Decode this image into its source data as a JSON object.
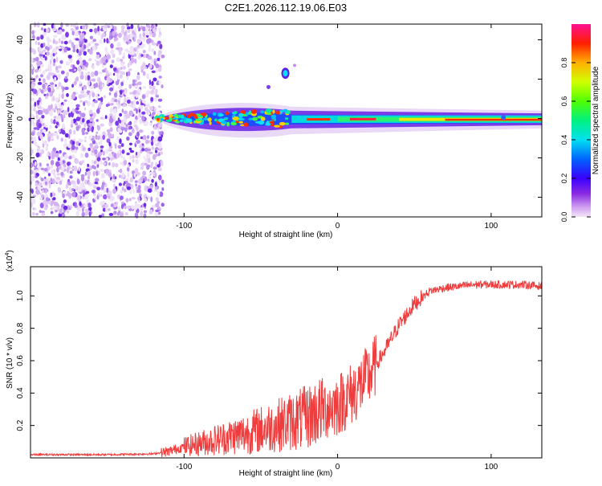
{
  "title": "C2E1.2026.112.19.06.E03",
  "chart_data": [
    {
      "type": "heatmap",
      "name": "spectrogram",
      "xlabel": "Height of straight line (km)",
      "ylabel": "Frequency (Hz)",
      "xlim": [
        -200,
        133
      ],
      "ylim": [
        -50,
        48
      ],
      "x_ticks": [
        -100,
        0,
        100
      ],
      "y_ticks": [
        -40,
        -20,
        0,
        20,
        40
      ],
      "colorbar": {
        "label": "Normalized spectral amplitude",
        "range": [
          0,
          1
        ],
        "ticks": [
          0.0,
          0.2,
          0.4,
          0.6,
          0.8
        ]
      },
      "features": {
        "noise_region_x": [
          -200,
          -118
        ],
        "signal_start_x": -120,
        "signal_band_hz": [
          -3,
          3
        ],
        "blob_x": -34,
        "blob_hz": 23
      }
    },
    {
      "type": "line",
      "name": "snr",
      "xlabel": "Height of straight line (km)",
      "ylabel": "SNR (10 * v/v)",
      "y_multiplier": "(x10",
      "y_exponent": "4",
      "xlim": [
        -200,
        133
      ],
      "ylim": [
        0,
        1.18
      ],
      "x_ticks": [
        -100,
        0,
        100
      ],
      "y_ticks": [
        0.2,
        0.4,
        0.6,
        0.8,
        1.0
      ],
      "color": "#f03c3c",
      "trend": {
        "x": [
          -200,
          -150,
          -120,
          -110,
          -100,
          -80,
          -60,
          -40,
          -20,
          -10,
          0,
          10,
          20,
          30,
          40,
          50,
          60,
          70,
          80,
          90,
          100,
          110,
          120,
          133
        ],
        "y": [
          0.02,
          0.02,
          0.025,
          0.04,
          0.07,
          0.11,
          0.15,
          0.2,
          0.25,
          0.3,
          0.33,
          0.4,
          0.5,
          0.65,
          0.82,
          0.95,
          1.03,
          1.05,
          1.06,
          1.07,
          1.07,
          1.07,
          1.07,
          1.06
        ]
      }
    }
  ]
}
